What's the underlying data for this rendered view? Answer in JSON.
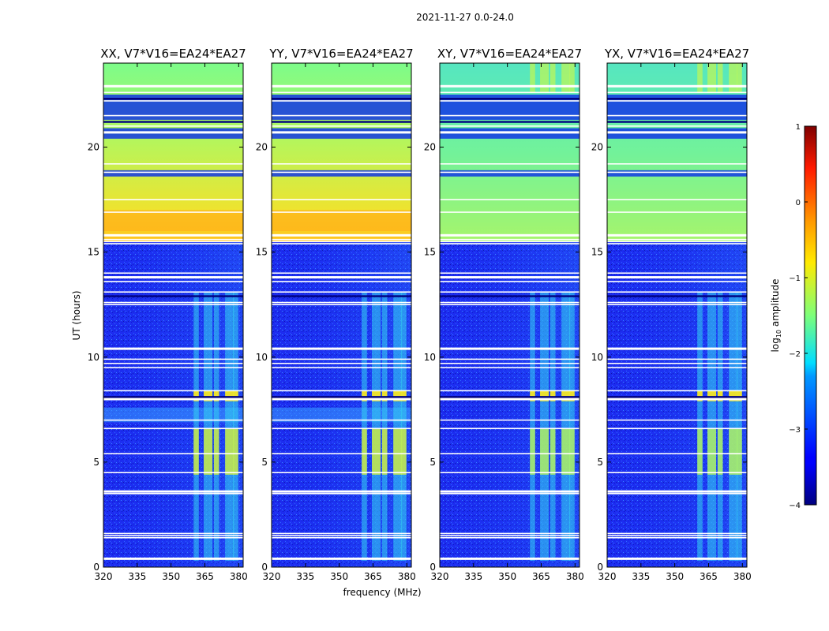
{
  "chart_data": {
    "type": "heatmap",
    "suptitle": "2021-11-27 0.0-24.0",
    "xlabel": "frequency (MHz)",
    "ylabel": "UT (hours)",
    "xlim": [
      320,
      382
    ],
    "ylim": [
      0,
      24
    ],
    "x_ticks": [
      320,
      335,
      350,
      365,
      380
    ],
    "y_ticks": [
      0,
      5,
      10,
      15,
      20
    ],
    "panels": [
      {
        "title": "XX, V7*V16=EA24*EA27",
        "polarization": "XX"
      },
      {
        "title": "YY, V7*V16=EA24*EA27",
        "polarization": "YY"
      },
      {
        "title": "XY, V7*V16=EA24*EA27",
        "polarization": "XY"
      },
      {
        "title": "YX, V7*V16=EA24*EA27",
        "polarization": "YX"
      }
    ],
    "colorbar": {
      "label": "log10 amplitude",
      "label_main": "log",
      "label_sub": "10",
      "label_rest": " amplitude",
      "range": [
        -4,
        1
      ],
      "ticks": [
        "1",
        "0",
        "−1",
        "−2",
        "−3",
        "−4"
      ],
      "colormap": "jet"
    },
    "features": {
      "night_quiet_hours": [
        0,
        15.5
      ],
      "day_bright_hours": [
        15.5,
        24
      ],
      "rfi_band_mhz": [
        360,
        382
      ],
      "flagged_rows_hours": [
        0.4,
        1.4,
        1.5,
        1.6,
        3.5,
        3.6,
        4.5,
        5.4,
        6.6,
        7.0,
        8.0,
        8.4,
        9.5,
        9.7,
        9.9,
        10.4,
        12.5,
        12.6,
        13.1,
        13.6,
        13.8,
        14.0,
        15.4,
        15.5,
        15.6,
        15.8,
        16.9,
        17.5,
        18.8,
        19.2,
        20.7,
        21.0,
        21.5,
        22.2,
        22.6,
        22.9
      ]
    }
  }
}
